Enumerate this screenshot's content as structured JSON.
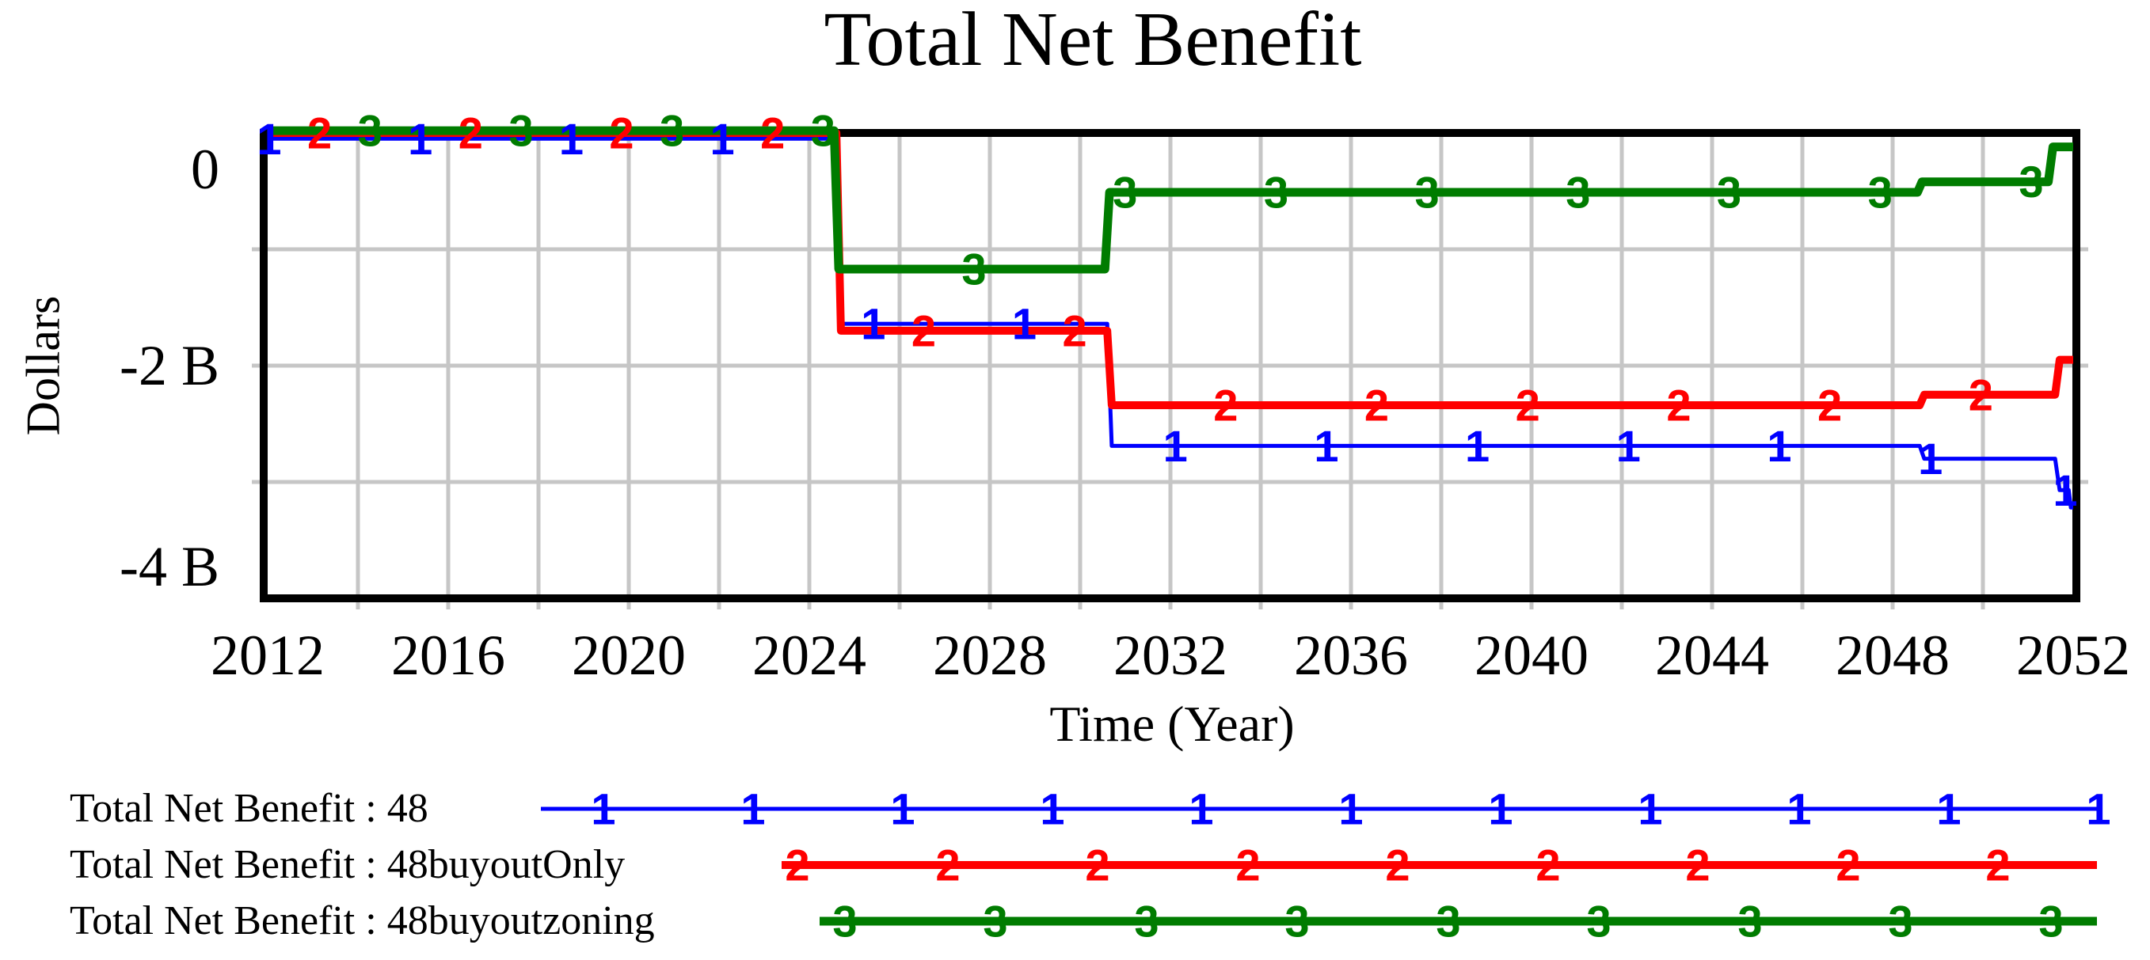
{
  "chart_data": {
    "type": "line",
    "title": "Total Net Benefit",
    "xlabel": "Time (Year)",
    "ylabel": "Dollars",
    "xlim": [
      2012,
      2052
    ],
    "ylim_billions": [
      -4,
      0
    ],
    "grid": true,
    "x_gridline_step_years": 2,
    "y_gridline_values": [
      -1,
      -2,
      -3
    ],
    "x_tick_labels": [
      "2012",
      "2016",
      "2020",
      "2024",
      "2028",
      "2032",
      "2036",
      "2040",
      "2044",
      "2048",
      "2052"
    ],
    "x_tick_years": [
      2012,
      2016,
      2020,
      2024,
      2028,
      2032,
      2036,
      2040,
      2044,
      2048,
      2052
    ],
    "y_ticks": [
      {
        "label": "0",
        "value": 0
      },
      {
        "label": "-2 B",
        "value": -2
      },
      {
        "label": "-4 B",
        "value": -4
      }
    ],
    "units": "billion dollars",
    "legend_position": "bottom-left",
    "series": [
      {
        "marker": "1",
        "name": "Total Net Benefit : 48",
        "color": "#0000ff",
        "line_width": 5,
        "end_marker": true,
        "step_points": [
          [
            2012,
            -0.05
          ],
          [
            2024.6,
            -0.05
          ],
          [
            2024.7,
            -1.64
          ],
          [
            2030.6,
            -1.64
          ],
          [
            2030.7,
            -2.69
          ],
          [
            2048.6,
            -2.69
          ],
          [
            2048.7,
            -2.8
          ],
          [
            2051.6,
            -2.8
          ],
          [
            2051.7,
            -3.07
          ],
          [
            2051.9,
            -3.07
          ],
          [
            2051.95,
            -3.22
          ],
          [
            2052,
            -3.22
          ]
        ]
      },
      {
        "marker": "2",
        "name": "Total Net Benefit : 48buyoutOnly",
        "color": "#ff0000",
        "line_width": 10,
        "end_marker": false,
        "step_points": [
          [
            2012,
            0
          ],
          [
            2024.6,
            0
          ],
          [
            2024.7,
            -1.7
          ],
          [
            2030.6,
            -1.7
          ],
          [
            2030.7,
            -2.34
          ],
          [
            2048.6,
            -2.34
          ],
          [
            2048.7,
            -2.25
          ],
          [
            2051.6,
            -2.25
          ],
          [
            2051.7,
            -1.95
          ],
          [
            2052,
            -1.95
          ]
        ]
      },
      {
        "marker": "3",
        "name": "Total Net Benefit : 48buyoutzoning",
        "color": "#007c00",
        "line_width": 11,
        "end_marker": false,
        "step_points": [
          [
            2012,
            0.02
          ],
          [
            2024.55,
            0.02
          ],
          [
            2024.65,
            -1.17
          ],
          [
            2030.55,
            -1.17
          ],
          [
            2030.65,
            -0.51
          ],
          [
            2048.55,
            -0.51
          ],
          [
            2048.65,
            -0.42
          ],
          [
            2051.45,
            -0.42
          ],
          [
            2051.55,
            -0.12
          ],
          [
            2052,
            -0.12
          ]
        ]
      }
    ],
    "colors": {
      "axis": "#000000",
      "gridline": "#c6c6c6",
      "background": "#ffffff"
    }
  }
}
